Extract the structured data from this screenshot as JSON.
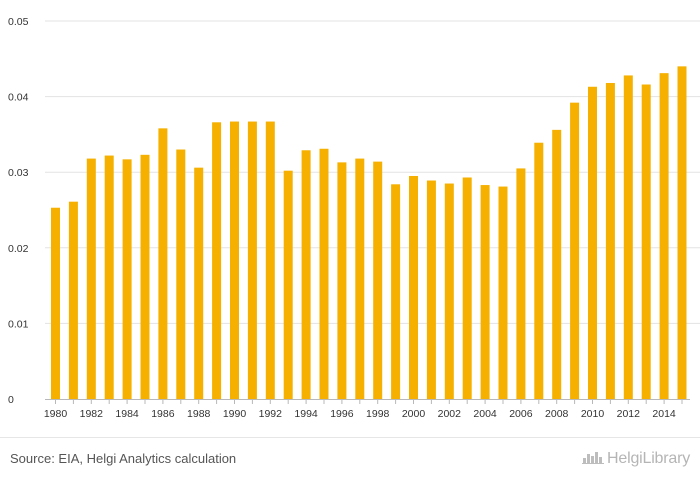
{
  "chart_data": {
    "type": "bar",
    "title": "",
    "xlabel": "",
    "ylabel": "",
    "ylim": [
      0,
      0.05
    ],
    "yticks": [
      "0",
      "0.01",
      "0.02",
      "0.03",
      "0.04",
      "0.05"
    ],
    "ytick_values": [
      0,
      0.01,
      0.02,
      0.03,
      0.04,
      0.05
    ],
    "xtick_labels": [
      "1980",
      "1982",
      "1984",
      "1986",
      "1988",
      "1990",
      "1992",
      "1994",
      "1996",
      "1998",
      "2000",
      "2002",
      "2004",
      "2006",
      "2008",
      "2010",
      "2012",
      "2014"
    ],
    "categories": [
      "1980",
      "1981",
      "1982",
      "1983",
      "1984",
      "1985",
      "1986",
      "1987",
      "1988",
      "1989",
      "1990",
      "1991",
      "1992",
      "1993",
      "1994",
      "1995",
      "1996",
      "1997",
      "1998",
      "1999",
      "2000",
      "2001",
      "2002",
      "2003",
      "2004",
      "2005",
      "2006",
      "2007",
      "2008",
      "2009",
      "2010",
      "2011",
      "2012",
      "2013",
      "2014",
      "2015"
    ],
    "values": [
      0.0253,
      0.0261,
      0.0318,
      0.0322,
      0.0317,
      0.0323,
      0.0358,
      0.033,
      0.0306,
      0.0366,
      0.0367,
      0.0367,
      0.0367,
      0.0302,
      0.0329,
      0.0331,
      0.0313,
      0.0318,
      0.0314,
      0.0284,
      0.0295,
      0.0289,
      0.0285,
      0.0293,
      0.0283,
      0.0281,
      0.0305,
      0.0339,
      0.0356,
      0.0392,
      0.0413,
      0.0418,
      0.0428,
      0.0416,
      0.0431,
      0.044
    ],
    "bar_color": "#f5b000",
    "grid": true,
    "grid_color": "#e3e3e3"
  },
  "footer": {
    "source": "Source: EIA, Helgi Analytics calculation",
    "brand": "HelgiLibrary"
  }
}
